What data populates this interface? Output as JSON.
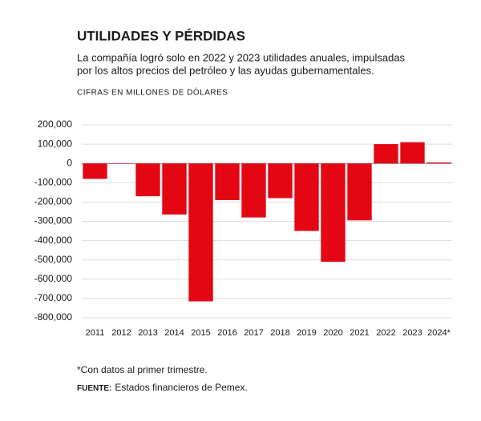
{
  "chart_data": {
    "type": "bar",
    "title": "UTILIDADES Y PÉRDIDAS",
    "subtitle": [
      "La compañía logró solo en 2022 y 2023 utilidades anuales, impulsadas",
      "por los altos precios del petróleo y las ayudas gubernamentales."
    ],
    "unit_label": "CIFRAS EN MILLONES DE DÓLARES",
    "categories": [
      "2011",
      "2012",
      "2013",
      "2014",
      "2015",
      "2016",
      "2017",
      "2018",
      "2019",
      "2020",
      "2021",
      "2022",
      "2023",
      "2024*"
    ],
    "values": [
      -80000,
      -2000,
      -170000,
      -265000,
      -715000,
      -190000,
      -280000,
      -180000,
      -350000,
      -510000,
      -295000,
      100000,
      110000,
      5000
    ],
    "color": "#e30613",
    "ylim": [
      -800000,
      200000
    ],
    "yticks": [
      {
        "value": 200000,
        "label": "200,000"
      },
      {
        "value": 100000,
        "label": "100,000"
      },
      0,
      {
        "value": -100000,
        "label": "-100,000"
      },
      {
        "value": -200000,
        "label": "-200,000"
      },
      {
        "value": -300000,
        "label": "-300,000"
      },
      {
        "value": -400000,
        "label": "-400,000"
      },
      {
        "value": -500000,
        "label": "-500,000"
      },
      {
        "value": -600000,
        "label": "-600,000"
      },
      {
        "value": -700000,
        "label": "-700,000"
      },
      {
        "value": -800000,
        "label": "-800,000"
      }
    ],
    "grid": true,
    "footnote": "*Con datos al primer trimestre.",
    "source_label": "FUENTE:",
    "source_text": "Estados financieros de Pemex."
  }
}
